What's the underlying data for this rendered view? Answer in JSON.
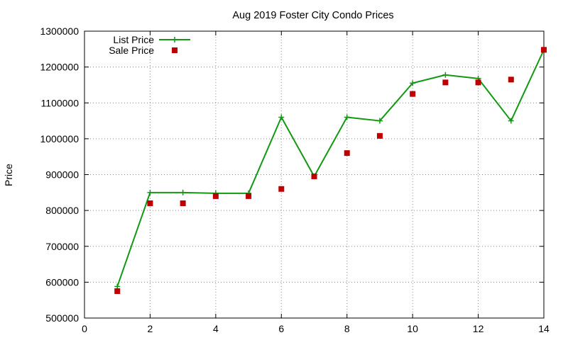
{
  "chart_data": {
    "type": "line",
    "title": "Aug 2019 Foster City Condo Prices",
    "xlabel": "",
    "ylabel": "Price",
    "xlim": [
      0,
      14
    ],
    "ylim": [
      500000,
      1300000
    ],
    "xticks": [
      0,
      2,
      4,
      6,
      8,
      10,
      12,
      14
    ],
    "yticks": [
      500000,
      600000,
      700000,
      800000,
      900000,
      1000000,
      1100000,
      1200000,
      1300000
    ],
    "grid": true,
    "legend_position": "top-left",
    "series": [
      {
        "name": "List Price",
        "style": "line-with-plus-markers",
        "color": "#119911",
        "x": [
          1,
          2,
          3,
          4,
          5,
          6,
          7,
          8,
          9,
          10,
          11,
          12,
          13,
          14
        ],
        "values": [
          588000,
          850000,
          850000,
          848000,
          848000,
          1060000,
          895000,
          1060000,
          1050000,
          1155000,
          1178000,
          1168000,
          1050000,
          1248000
        ]
      },
      {
        "name": "Sale Price",
        "style": "square-markers",
        "color": "#c00000",
        "x": [
          1,
          2,
          3,
          4,
          5,
          6,
          7,
          8,
          9,
          10,
          11,
          12,
          13,
          14
        ],
        "values": [
          575000,
          820000,
          820000,
          840000,
          840000,
          860000,
          895000,
          960000,
          1008000,
          1125000,
          1157000,
          1157000,
          1165000,
          1248000
        ]
      }
    ]
  }
}
